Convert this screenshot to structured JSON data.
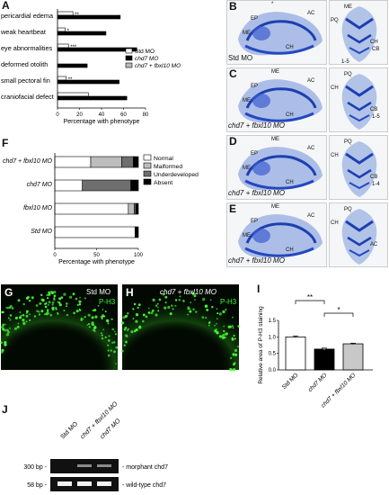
{
  "panelA": {
    "letter": "A",
    "categories": [
      "pericardial edema",
      "weak heartbeat",
      "eye abnormalities",
      "deformed otolith",
      "small pectoral fin",
      "craniofacial defect"
    ],
    "significance": [
      "**",
      "*",
      "***",
      "",
      "**",
      ""
    ],
    "xlabel": "Percentage with phenotype",
    "ticks": [
      "0",
      "20",
      "40",
      "60",
      "80"
    ],
    "legend": [
      "Std MO",
      "chd7 MO",
      "chd7 + fbxl10 MO"
    ]
  },
  "panelF": {
    "letter": "F",
    "rows": [
      "chd7 + fbxl10 MO",
      "chd7 MO",
      "fbxl10 MO",
      "Std MO"
    ],
    "xlabel": "Percentage with phenotype",
    "ticks": [
      "0",
      "50",
      "100"
    ],
    "legend": [
      "Normal",
      "Malformed",
      "Underdeveloped",
      "Absent"
    ]
  },
  "panelI": {
    "letter": "I",
    "ylabel": "Relative area of P-H3 staining",
    "ticks": [
      "0.0",
      "0.5",
      "1.0",
      "1.5"
    ],
    "categories": [
      "Std MO",
      "chd7 MO",
      "chd7 + fbxl10 MO"
    ],
    "sig1": "**",
    "sig2": "*"
  },
  "photos": {
    "B": {
      "letter": "B",
      "caption": "Std MO",
      "labels": [
        "EP",
        "AC",
        "ME",
        "CH",
        "*",
        "ME",
        "PQ",
        "CH",
        "CB",
        "1-5"
      ]
    },
    "C": {
      "letter": "C",
      "caption": "chd7 + fbxl10 MO",
      "labels": [
        "EP",
        "AC",
        "ME",
        "CH",
        "ME",
        "PQ",
        "CH",
        "CB",
        "1-5"
      ]
    },
    "D": {
      "letter": "D",
      "caption": "chd7 + fbxl10 MO",
      "labels": [
        "EP",
        "AC",
        "ME",
        "CH",
        "ME",
        "PQ",
        "CH",
        "CB",
        "1-4"
      ]
    },
    "E": {
      "letter": "E",
      "caption": "chd7 + fbxl10 MO",
      "labels": [
        "EP",
        "AC",
        "ME",
        "CH",
        "ME",
        "PQ",
        "CH",
        "AC"
      ]
    },
    "G": {
      "letter": "G",
      "caption": "Std MO",
      "stain": "P-H3"
    },
    "H": {
      "letter": "H",
      "caption": "chd7 + fbxl10 MO",
      "stain": "P-H3"
    }
  },
  "panelJ": {
    "letter": "J",
    "lanes": [
      "Std MO",
      "chd7 + fbxl10 MO",
      "chd7 MO"
    ],
    "markers": [
      "300 bp -",
      "58 bp -"
    ],
    "bands": [
      "- morphant chd7",
      "- wild-type chd7"
    ]
  },
  "chart_data": [
    {
      "type": "bar",
      "title": "",
      "xlabel": "Percentage with phenotype",
      "categories": [
        "pericardial edema",
        "weak heartbeat",
        "eye abnormalities",
        "deformed otolith",
        "small pectoral fin",
        "craniofacial defect"
      ],
      "series": [
        {
          "name": "Std MO",
          "values": [
            14,
            7,
            10,
            0,
            8,
            28
          ]
        },
        {
          "name": "chd7 MO",
          "values": [
            57,
            44,
            72,
            27,
            56,
            63
          ]
        },
        {
          "name": "chd7 + fbxl10 MO",
          "values": [
            0,
            0,
            0,
            0,
            0,
            0
          ]
        }
      ],
      "xlim": [
        0,
        80
      ]
    },
    {
      "type": "bar",
      "title": "",
      "xlabel": "Percentage with phenotype",
      "categories": [
        "chd7 + fbxl10 MO",
        "chd7 MO",
        "fbxl10 MO",
        "Std MO"
      ],
      "series": [
        {
          "name": "Normal",
          "values": [
            43,
            33,
            88,
            96
          ]
        },
        {
          "name": "Malformed",
          "values": [
            37,
            0,
            7,
            0
          ]
        },
        {
          "name": "Underdeveloped",
          "values": [
            14,
            58,
            2,
            0
          ]
        },
        {
          "name": "Absent",
          "values": [
            6,
            9,
            3,
            4
          ]
        }
      ],
      "xlim": [
        0,
        100
      ]
    },
    {
      "type": "bar",
      "title": "",
      "ylabel": "Relative area of P-H3 staining",
      "categories": [
        "Std MO",
        "chd7 MO",
        "chd7 + fbxl10 MO"
      ],
      "values": [
        1.0,
        0.63,
        0.79
      ],
      "errors": [
        0.03,
        0.03,
        0.02
      ],
      "ylim": [
        0,
        1.5
      ]
    }
  ]
}
